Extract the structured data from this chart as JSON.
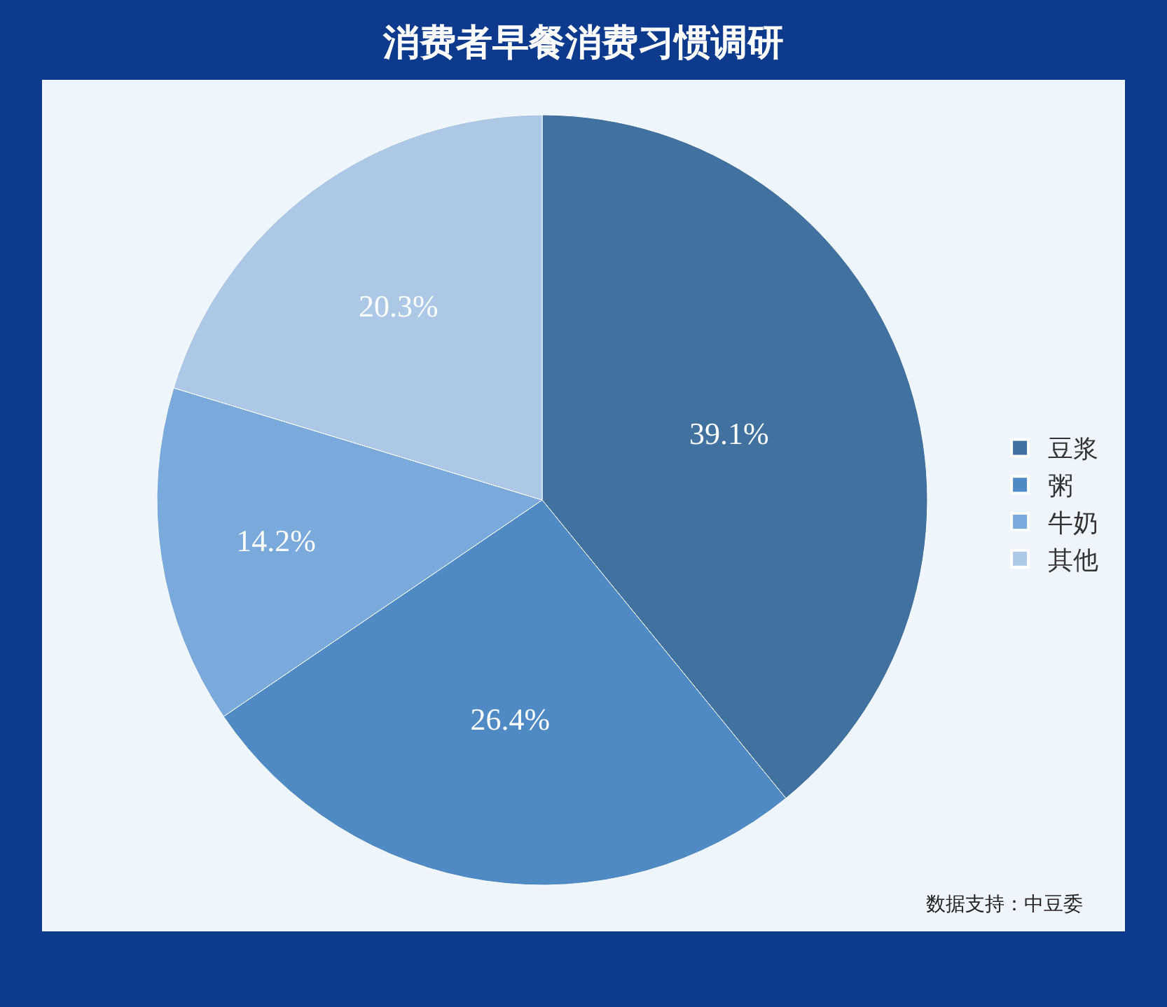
{
  "chart_data": {
    "type": "pie",
    "title": "消费者早餐消费习惯调研",
    "categories": [
      "豆浆",
      "粥",
      "牛奶",
      "其他"
    ],
    "values": [
      39.1,
      26.4,
      14.2,
      20.3
    ],
    "colors": [
      "#41729f",
      "#4f8ac5",
      "#7aaadc",
      "#adc8e6"
    ],
    "value_labels": [
      "39.1%",
      "26.4%",
      "14.2%",
      "20.3%"
    ],
    "legend": "right",
    "annotations": [
      "数据支持：中豆委"
    ]
  }
}
